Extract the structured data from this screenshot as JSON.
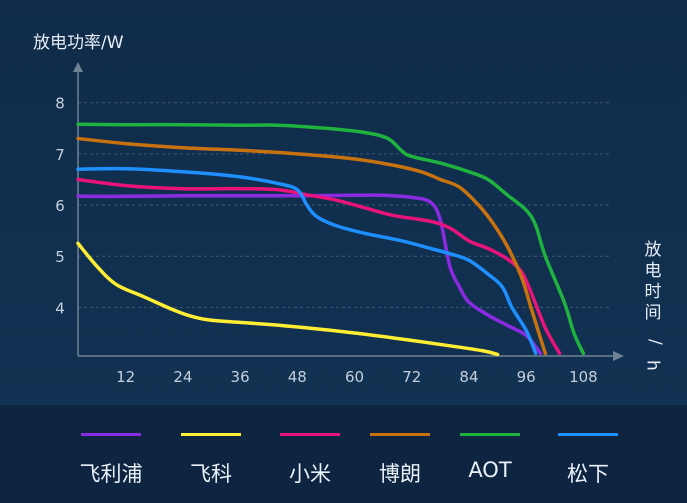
{
  "chart_data": {
    "type": "line",
    "ylabel": "放电功率/W",
    "xlabel": "放电时间/h",
    "xlim": [
      2,
      114
    ],
    "ylim": [
      3.05,
      8.6
    ],
    "xticks": [
      12,
      24,
      36,
      48,
      60,
      72,
      84,
      96,
      108
    ],
    "yticks": [
      4,
      5,
      6,
      7,
      8
    ],
    "grid": "horizontal-dashed",
    "legend_position": "bottom",
    "series": [
      {
        "name": "飞利浦",
        "color": "#8a2be2",
        "points": [
          [
            2,
            6.17
          ],
          [
            12,
            6.17
          ],
          [
            24,
            6.18
          ],
          [
            36,
            6.18
          ],
          [
            48,
            6.18
          ],
          [
            60,
            6.19
          ],
          [
            66,
            6.19
          ],
          [
            72,
            6.15
          ],
          [
            76,
            6.05
          ],
          [
            78,
            5.7
          ],
          [
            80,
            4.8
          ],
          [
            82,
            4.4
          ],
          [
            84,
            4.1
          ],
          [
            88,
            3.85
          ],
          [
            92,
            3.65
          ],
          [
            96,
            3.45
          ],
          [
            99,
            3.1
          ]
        ]
      },
      {
        "name": "飞科",
        "color": "#ffee33",
        "points": [
          [
            2,
            5.25
          ],
          [
            6,
            4.8
          ],
          [
            10,
            4.45
          ],
          [
            16,
            4.2
          ],
          [
            22,
            3.95
          ],
          [
            26,
            3.82
          ],
          [
            30,
            3.75
          ],
          [
            40,
            3.68
          ],
          [
            50,
            3.6
          ],
          [
            60,
            3.5
          ],
          [
            70,
            3.38
          ],
          [
            80,
            3.25
          ],
          [
            87,
            3.15
          ],
          [
            90,
            3.08
          ]
        ]
      },
      {
        "name": "小米",
        "color": "#e8137b",
        "points": [
          [
            2,
            6.5
          ],
          [
            12,
            6.38
          ],
          [
            24,
            6.32
          ],
          [
            36,
            6.32
          ],
          [
            44,
            6.3
          ],
          [
            50,
            6.2
          ],
          [
            56,
            6.1
          ],
          [
            62,
            5.95
          ],
          [
            68,
            5.8
          ],
          [
            76,
            5.68
          ],
          [
            80,
            5.55
          ],
          [
            84,
            5.3
          ],
          [
            88,
            5.15
          ],
          [
            92,
            4.95
          ],
          [
            95,
            4.7
          ],
          [
            97,
            4.3
          ],
          [
            100,
            3.6
          ],
          [
            103,
            3.1
          ]
        ]
      },
      {
        "name": "博朗",
        "color": "#c8720f",
        "points": [
          [
            2,
            7.3
          ],
          [
            12,
            7.2
          ],
          [
            24,
            7.12
          ],
          [
            36,
            7.07
          ],
          [
            48,
            7.0
          ],
          [
            60,
            6.9
          ],
          [
            68,
            6.78
          ],
          [
            74,
            6.65
          ],
          [
            78,
            6.5
          ],
          [
            82,
            6.35
          ],
          [
            86,
            6.0
          ],
          [
            89,
            5.65
          ],
          [
            92,
            5.2
          ],
          [
            95,
            4.6
          ],
          [
            97,
            4.0
          ],
          [
            99,
            3.4
          ],
          [
            100,
            3.1
          ]
        ]
      },
      {
        "name": "AOT",
        "color": "#1fb23f",
        "points": [
          [
            2,
            7.58
          ],
          [
            12,
            7.57
          ],
          [
            24,
            7.57
          ],
          [
            36,
            7.56
          ],
          [
            44,
            7.56
          ],
          [
            54,
            7.5
          ],
          [
            62,
            7.42
          ],
          [
            67,
            7.3
          ],
          [
            70,
            7.05
          ],
          [
            72,
            6.95
          ],
          [
            78,
            6.82
          ],
          [
            84,
            6.65
          ],
          [
            88,
            6.5
          ],
          [
            92,
            6.2
          ],
          [
            96,
            5.9
          ],
          [
            98,
            5.6
          ],
          [
            100,
            5.0
          ],
          [
            104,
            4.1
          ],
          [
            106,
            3.5
          ],
          [
            108,
            3.1
          ]
        ]
      },
      {
        "name": "松下",
        "color": "#1e8fff",
        "points": [
          [
            2,
            6.7
          ],
          [
            12,
            6.71
          ],
          [
            24,
            6.65
          ],
          [
            36,
            6.55
          ],
          [
            44,
            6.42
          ],
          [
            48,
            6.3
          ],
          [
            50,
            6.0
          ],
          [
            52,
            5.78
          ],
          [
            56,
            5.6
          ],
          [
            62,
            5.45
          ],
          [
            70,
            5.3
          ],
          [
            76,
            5.15
          ],
          [
            80,
            5.05
          ],
          [
            84,
            4.92
          ],
          [
            88,
            4.65
          ],
          [
            91,
            4.4
          ],
          [
            93,
            4.0
          ],
          [
            96,
            3.55
          ],
          [
            98,
            3.1
          ]
        ]
      }
    ]
  }
}
